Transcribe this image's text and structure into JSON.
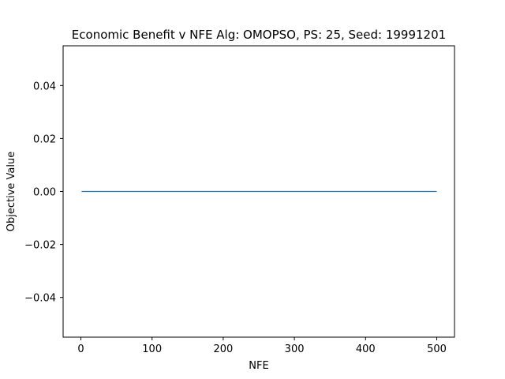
{
  "chart_data": {
    "type": "line",
    "title": "Economic Benefit v NFE Alg: OMOPSO, PS: 25, Seed: 19991201",
    "xlabel": "NFE",
    "ylabel": "Objective Value",
    "xlim": [
      -24.95,
      524.95
    ],
    "ylim": [
      -0.055,
      0.055
    ],
    "xticks": [
      0,
      100,
      200,
      300,
      400,
      500
    ],
    "xtick_labels": [
      "0",
      "100",
      "200",
      "300",
      "400",
      "500"
    ],
    "yticks": [
      -0.04,
      -0.02,
      0.0,
      0.02,
      0.04
    ],
    "ytick_labels": [
      "−0.04",
      "−0.02",
      "0.00",
      "0.02",
      "0.04"
    ],
    "grid": false,
    "series": [
      {
        "color": "#1f77b4",
        "x": [
          1,
          500
        ],
        "y": [
          0.0,
          0.0
        ]
      }
    ]
  }
}
